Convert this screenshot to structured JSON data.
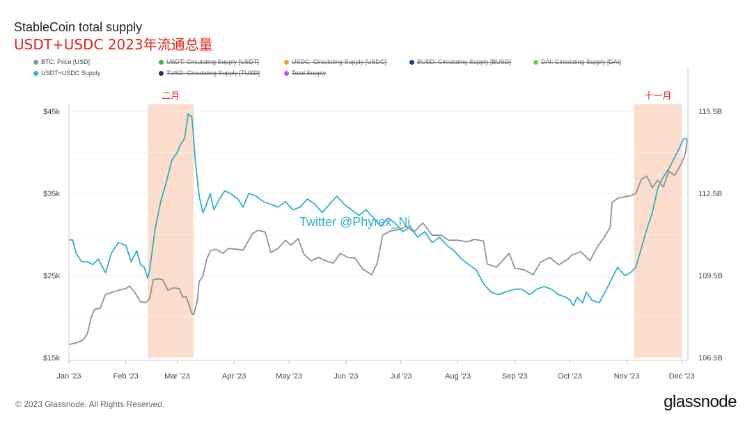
{
  "header": {
    "title": "StableCoin total supply",
    "subtitle": "USDT+USDC 2023年流通总量"
  },
  "legend": {
    "row1": [
      {
        "label": "BTC: Price [USD]",
        "color": "#8c9297",
        "struck": false
      },
      {
        "label": "USDT: Circulating Supply [USDT]",
        "color": "#3cb44b",
        "struck": true
      },
      {
        "label": "USDC: Circulating Supply [USDC]",
        "color": "#f0a020",
        "struck": true
      },
      {
        "label": "BUSD: Circulating Supply [BUSD]",
        "color": "#1f3a93",
        "struck": true
      },
      {
        "label": "DAI: Circulating Supply [DAI]",
        "color": "#7ac943",
        "struck": true
      }
    ],
    "row2": [
      {
        "label": "USDT+USDC Supply",
        "color": "#2cb1c9",
        "struck": false
      },
      {
        "label": "TUSD: Circulating Supply [TUSD]",
        "color": "#2b2d6e",
        "struck": true
      },
      {
        "label": "Total Supply",
        "color": "#e040fb",
        "struck": true
      }
    ]
  },
  "annotations": {
    "feb_label": "二月",
    "nov_label": "十一月",
    "watermark": "Twitter @Phyrex_Ni"
  },
  "footer": {
    "copyright": "© 2023 Glassnode. All Rights Reserved.",
    "brand": "glassnode"
  },
  "chart_data": {
    "type": "line",
    "x_ticks": [
      "Jan '23",
      "Feb '23",
      "Mar '23",
      "Apr '23",
      "May '23",
      "Jun '23",
      "Jul '23",
      "Aug '23",
      "Sep '23",
      "Oct '23",
      "Nov '23",
      "Dec '23"
    ],
    "y_left": {
      "ticks": [
        "$45k",
        "$35k",
        "$25k",
        "$15k"
      ],
      "range": [
        15000,
        45000
      ]
    },
    "y_right": {
      "ticks": [
        "115.5B",
        "112.5B",
        "109.5B",
        "106.5B"
      ],
      "range": [
        106.5,
        115.5
      ]
    },
    "x_range": [
      "2023-01-01",
      "2023-12-04"
    ],
    "highlights": [
      {
        "start": "2023-02-13",
        "end": "2023-03-10",
        "label": "二月"
      },
      {
        "start": "2023-11-05",
        "end": "2023-12-01",
        "label": "十一月"
      }
    ],
    "series": [
      {
        "name": "BTC: Price [USD]",
        "axis": "left",
        "color": "#8c9297",
        "points": [
          [
            "2023-01-01",
            16600
          ],
          [
            "2023-01-05",
            16800
          ],
          [
            "2023-01-09",
            17200
          ],
          [
            "2023-01-11",
            17900
          ],
          [
            "2023-01-13",
            19800
          ],
          [
            "2023-01-15",
            20900
          ],
          [
            "2023-01-18",
            21000
          ],
          [
            "2023-01-21",
            22700
          ],
          [
            "2023-01-24",
            22900
          ],
          [
            "2023-01-28",
            23200
          ],
          [
            "2023-02-01",
            23400
          ],
          [
            "2023-02-03",
            23700
          ],
          [
            "2023-02-06",
            22900
          ],
          [
            "2023-02-09",
            21800
          ],
          [
            "2023-02-12",
            21700
          ],
          [
            "2023-02-14",
            22200
          ],
          [
            "2023-02-16",
            24500
          ],
          [
            "2023-02-18",
            24600
          ],
          [
            "2023-02-21",
            24500
          ],
          [
            "2023-02-24",
            23200
          ],
          [
            "2023-02-27",
            23500
          ],
          [
            "2023-03-02",
            23400
          ],
          [
            "2023-03-04",
            22400
          ],
          [
            "2023-03-06",
            22400
          ],
          [
            "2023-03-09",
            20400
          ],
          [
            "2023-03-10",
            20200
          ],
          [
            "2023-03-12",
            22000
          ],
          [
            "2023-03-13",
            24300
          ],
          [
            "2023-03-15",
            24900
          ],
          [
            "2023-03-17",
            26900
          ],
          [
            "2023-03-19",
            28000
          ],
          [
            "2023-03-22",
            28200
          ],
          [
            "2023-03-26",
            27700
          ],
          [
            "2023-03-29",
            28300
          ],
          [
            "2023-04-02",
            28200
          ],
          [
            "2023-04-06",
            28100
          ],
          [
            "2023-04-11",
            30100
          ],
          [
            "2023-04-14",
            30500
          ],
          [
            "2023-04-18",
            30300
          ],
          [
            "2023-04-21",
            27800
          ],
          [
            "2023-04-25",
            28300
          ],
          [
            "2023-04-29",
            29300
          ],
          [
            "2023-05-02",
            28700
          ],
          [
            "2023-05-06",
            29500
          ],
          [
            "2023-05-09",
            27600
          ],
          [
            "2023-05-13",
            26800
          ],
          [
            "2023-05-17",
            27200
          ],
          [
            "2023-05-21",
            26800
          ],
          [
            "2023-05-25",
            26500
          ],
          [
            "2023-05-29",
            27700
          ],
          [
            "2023-06-02",
            27200
          ],
          [
            "2023-06-06",
            27100
          ],
          [
            "2023-06-10",
            25800
          ],
          [
            "2023-06-15",
            25100
          ],
          [
            "2023-06-18",
            26500
          ],
          [
            "2023-06-21",
            29900
          ],
          [
            "2023-06-25",
            30400
          ],
          [
            "2023-06-30",
            30600
          ],
          [
            "2023-07-04",
            31000
          ],
          [
            "2023-07-08",
            30300
          ],
          [
            "2023-07-13",
            31400
          ],
          [
            "2023-07-18",
            29900
          ],
          [
            "2023-07-23",
            29900
          ],
          [
            "2023-07-27",
            29300
          ],
          [
            "2023-08-01",
            29300
          ],
          [
            "2023-08-06",
            29100
          ],
          [
            "2023-08-10",
            29400
          ],
          [
            "2023-08-15",
            29200
          ],
          [
            "2023-08-17",
            26400
          ],
          [
            "2023-08-22",
            26000
          ],
          [
            "2023-08-29",
            27700
          ],
          [
            "2023-09-01",
            25900
          ],
          [
            "2023-09-06",
            25700
          ],
          [
            "2023-09-11",
            25100
          ],
          [
            "2023-09-15",
            26600
          ],
          [
            "2023-09-20",
            27200
          ],
          [
            "2023-09-25",
            26300
          ],
          [
            "2023-09-30",
            27000
          ],
          [
            "2023-10-02",
            27500
          ],
          [
            "2023-10-07",
            27900
          ],
          [
            "2023-10-12",
            26800
          ],
          [
            "2023-10-16",
            28500
          ],
          [
            "2023-10-20",
            29700
          ],
          [
            "2023-10-23",
            30900
          ],
          [
            "2023-10-24",
            33900
          ],
          [
            "2023-10-27",
            34400
          ],
          [
            "2023-10-31",
            34600
          ],
          [
            "2023-11-03",
            34700
          ],
          [
            "2023-11-06",
            35000
          ],
          [
            "2023-11-09",
            36700
          ],
          [
            "2023-11-12",
            37100
          ],
          [
            "2023-11-15",
            35700
          ],
          [
            "2023-11-18",
            36600
          ],
          [
            "2023-11-21",
            35800
          ],
          [
            "2023-11-24",
            37700
          ],
          [
            "2023-11-27",
            37200
          ],
          [
            "2023-11-29",
            37900
          ],
          [
            "2023-12-01",
            38700
          ],
          [
            "2023-12-03",
            39900
          ],
          [
            "2023-12-04",
            41600
          ]
        ]
      },
      {
        "name": "USDT+USDC Supply",
        "axis": "right",
        "color": "#2cb1c9",
        "points": [
          [
            "2023-01-01",
            110.8
          ],
          [
            "2023-01-03",
            110.8
          ],
          [
            "2023-01-05",
            110.3
          ],
          [
            "2023-01-08",
            110.0
          ],
          [
            "2023-01-11",
            110.0
          ],
          [
            "2023-01-14",
            109.9
          ],
          [
            "2023-01-17",
            110.1
          ],
          [
            "2023-01-21",
            109.6
          ],
          [
            "2023-01-24",
            110.3
          ],
          [
            "2023-01-28",
            110.7
          ],
          [
            "2023-02-01",
            110.6
          ],
          [
            "2023-02-04",
            110.0
          ],
          [
            "2023-02-07",
            110.4
          ],
          [
            "2023-02-09",
            109.9
          ],
          [
            "2023-02-11",
            109.8
          ],
          [
            "2023-02-13",
            109.4
          ],
          [
            "2023-02-14",
            109.7
          ],
          [
            "2023-02-17",
            111.2
          ],
          [
            "2023-02-20",
            112.2
          ],
          [
            "2023-02-23",
            112.9
          ],
          [
            "2023-02-26",
            113.7
          ],
          [
            "2023-03-01",
            114.0
          ],
          [
            "2023-03-03",
            114.3
          ],
          [
            "2023-03-05",
            114.5
          ],
          [
            "2023-03-07",
            115.4
          ],
          [
            "2023-03-09",
            115.3
          ],
          [
            "2023-03-10",
            114.5
          ],
          [
            "2023-03-11",
            113.6
          ],
          [
            "2023-03-13",
            112.4
          ],
          [
            "2023-03-15",
            111.8
          ],
          [
            "2023-03-17",
            112.1
          ],
          [
            "2023-03-19",
            112.5
          ],
          [
            "2023-03-21",
            111.9
          ],
          [
            "2023-03-24",
            112.3
          ],
          [
            "2023-03-27",
            112.6
          ],
          [
            "2023-03-30",
            112.5
          ],
          [
            "2023-04-03",
            112.3
          ],
          [
            "2023-04-06",
            112.0
          ],
          [
            "2023-04-09",
            112.5
          ],
          [
            "2023-04-13",
            112.4
          ],
          [
            "2023-04-17",
            112.2
          ],
          [
            "2023-04-21",
            112.1
          ],
          [
            "2023-04-25",
            112.0
          ],
          [
            "2023-04-29",
            112.2
          ],
          [
            "2023-05-03",
            111.9
          ],
          [
            "2023-05-07",
            112.0
          ],
          [
            "2023-05-11",
            112.3
          ],
          [
            "2023-05-15",
            112.1
          ],
          [
            "2023-05-19",
            111.8
          ],
          [
            "2023-05-23",
            112.1
          ],
          [
            "2023-05-27",
            112.4
          ],
          [
            "2023-05-31",
            112.1
          ],
          [
            "2023-06-04",
            111.9
          ],
          [
            "2023-06-08",
            111.7
          ],
          [
            "2023-06-12",
            111.9
          ],
          [
            "2023-06-16",
            111.6
          ],
          [
            "2023-06-20",
            111.3
          ],
          [
            "2023-06-24",
            111.6
          ],
          [
            "2023-06-28",
            111.4
          ],
          [
            "2023-07-02",
            111.1
          ],
          [
            "2023-07-06",
            111.3
          ],
          [
            "2023-07-10",
            110.9
          ],
          [
            "2023-07-14",
            111.1
          ],
          [
            "2023-07-18",
            110.7
          ],
          [
            "2023-07-22",
            110.9
          ],
          [
            "2023-07-26",
            110.6
          ],
          [
            "2023-07-30",
            110.4
          ],
          [
            "2023-08-03",
            110.1
          ],
          [
            "2023-08-07",
            109.9
          ],
          [
            "2023-08-11",
            109.7
          ],
          [
            "2023-08-15",
            109.2
          ],
          [
            "2023-08-19",
            108.9
          ],
          [
            "2023-08-23",
            108.8
          ],
          [
            "2023-08-27",
            108.9
          ],
          [
            "2023-09-01",
            109.0
          ],
          [
            "2023-09-05",
            109.0
          ],
          [
            "2023-09-09",
            108.8
          ],
          [
            "2023-09-13",
            109.0
          ],
          [
            "2023-09-17",
            109.1
          ],
          [
            "2023-09-21",
            109.0
          ],
          [
            "2023-09-25",
            108.8
          ],
          [
            "2023-09-29",
            108.7
          ],
          [
            "2023-10-01",
            108.6
          ],
          [
            "2023-10-03",
            108.4
          ],
          [
            "2023-10-05",
            108.7
          ],
          [
            "2023-10-08",
            108.5
          ],
          [
            "2023-10-10",
            108.9
          ],
          [
            "2023-10-13",
            108.6
          ],
          [
            "2023-10-17",
            108.5
          ],
          [
            "2023-10-21",
            109.0
          ],
          [
            "2023-10-24",
            109.4
          ],
          [
            "2023-10-27",
            109.8
          ],
          [
            "2023-10-31",
            109.5
          ],
          [
            "2023-11-03",
            109.6
          ],
          [
            "2023-11-06",
            109.8
          ],
          [
            "2023-11-09",
            110.5
          ],
          [
            "2023-11-12",
            111.2
          ],
          [
            "2023-11-15",
            111.8
          ],
          [
            "2023-11-18",
            112.7
          ],
          [
            "2023-11-21",
            113.1
          ],
          [
            "2023-11-24",
            113.4
          ],
          [
            "2023-11-27",
            113.8
          ],
          [
            "2023-11-30",
            114.2
          ],
          [
            "2023-12-02",
            114.5
          ],
          [
            "2023-12-04",
            114.5
          ]
        ]
      }
    ]
  }
}
